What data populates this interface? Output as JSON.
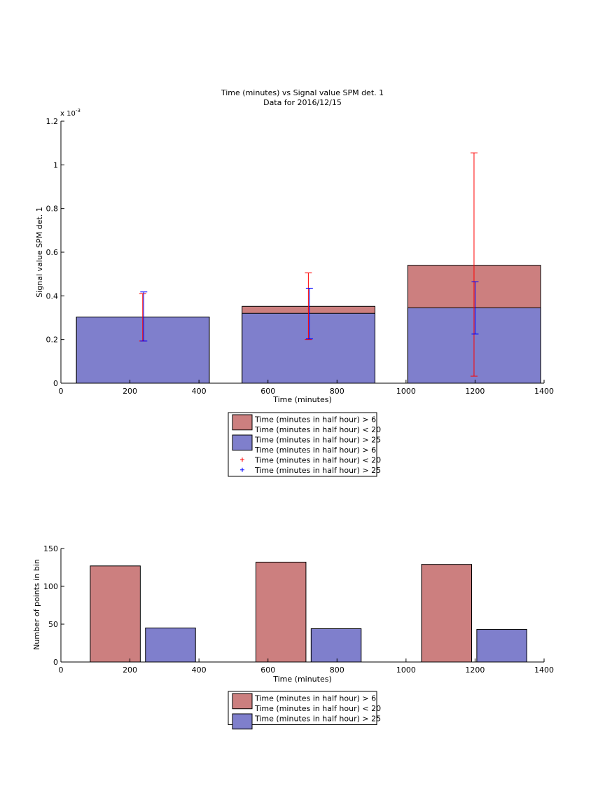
{
  "colors": {
    "red_fill": "#cc7f7f",
    "blue_fill": "#7f7fcc",
    "red_err": "#ff0000",
    "blue_err": "#0000ff",
    "axis": "#000000"
  },
  "chart_data": [
    {
      "type": "bar",
      "title": "Time (minutes) vs Signal value SPM det. 1",
      "subtitle": "Data for 2016/12/15",
      "xlabel": "Time (minutes)",
      "ylabel": "Signal value SPM det. 1",
      "exponent_label": "x 10",
      "exponent_power": "-3",
      "xlim": [
        0,
        1400
      ],
      "ylim": [
        0,
        1.2
      ],
      "y_scale": 0.001,
      "x_ticks": [
        "0",
        "200",
        "400",
        "600",
        "800",
        "1000",
        "1200",
        "1400"
      ],
      "y_ticks": [
        "0",
        "0.2",
        "0.4",
        "0.6",
        "0.8",
        "1",
        "1.2"
      ],
      "bars": [
        {
          "x_from": 45,
          "x_to": 430,
          "red": 0.303,
          "blue": 0.303
        },
        {
          "x_from": 525,
          "x_to": 910,
          "red": 0.352,
          "blue": 0.32
        },
        {
          "x_from": 1005,
          "x_to": 1390,
          "red": 0.54,
          "blue": 0.345
        }
      ],
      "series": [
        {
          "name": "Time (minutes in half hour) > 6",
          "values": [
            0.303,
            0.352,
            0.54
          ]
        },
        {
          "name": "Time (minutes in half hour) < 20",
          "values": [
            0.303,
            0.352,
            0.54
          ]
        },
        {
          "name": "Time (minutes in half hour) > 25",
          "values": [
            0.303,
            0.32,
            0.345
          ]
        }
      ],
      "errorbars": [
        {
          "series": "red",
          "x": 237,
          "low": 0.193,
          "high": 0.41
        },
        {
          "series": "blue",
          "x": 240,
          "low": 0.193,
          "high": 0.418
        },
        {
          "series": "red",
          "x": 717,
          "low": 0.2,
          "high": 0.505
        },
        {
          "series": "blue",
          "x": 720,
          "low": 0.203,
          "high": 0.435
        },
        {
          "series": "red",
          "x": 1197,
          "low": 0.032,
          "high": 1.055
        },
        {
          "series": "blue",
          "x": 1200,
          "low": 0.225,
          "high": 0.465
        }
      ],
      "legend": {
        "entries": [
          {
            "kind": "patch",
            "color": "red",
            "label": "Time (minutes in half hour) > 6"
          },
          {
            "kind": "none",
            "label": "Time (minutes in half hour) < 20"
          },
          {
            "kind": "patch",
            "color": "blue",
            "label": "Time (minutes in half hour) > 25"
          },
          {
            "kind": "none",
            "label": "Time (minutes in half hour) > 6"
          },
          {
            "kind": "marker",
            "color": "red",
            "label": "Time (minutes in half hour) < 20"
          },
          {
            "kind": "marker",
            "color": "blue",
            "label": "Time (minutes in half hour) > 25"
          }
        ]
      }
    },
    {
      "type": "bar",
      "title": "",
      "xlabel": "Time (minutes)",
      "ylabel": "Number of points in bin",
      "xlim": [
        0,
        1400
      ],
      "ylim": [
        0,
        150
      ],
      "x_ticks": [
        "0",
        "200",
        "400",
        "600",
        "800",
        "1000",
        "1200",
        "1400"
      ],
      "y_ticks": [
        "0",
        "50",
        "100",
        "150"
      ],
      "bars": [
        {
          "color": "red",
          "x_from": 85,
          "x_to": 230,
          "value": 127
        },
        {
          "color": "blue",
          "x_from": 245,
          "x_to": 390,
          "value": 45
        },
        {
          "color": "red",
          "x_from": 565,
          "x_to": 710,
          "value": 132
        },
        {
          "color": "blue",
          "x_from": 725,
          "x_to": 870,
          "value": 44
        },
        {
          "color": "red",
          "x_from": 1045,
          "x_to": 1190,
          "value": 129
        },
        {
          "color": "blue",
          "x_from": 1205,
          "x_to": 1350,
          "value": 43
        }
      ],
      "series": [
        {
          "name": "Time (minutes in half hour) > 6",
          "values": [
            127,
            132,
            129
          ]
        },
        {
          "name": "Time (minutes in half hour) < 20",
          "values": [
            127,
            132,
            129
          ]
        },
        {
          "name": "Time (minutes in half hour) > 25",
          "values": [
            45,
            44,
            43
          ]
        }
      ],
      "legend": {
        "entries": [
          {
            "kind": "patch",
            "color": "red",
            "label": "Time (minutes in half hour) > 6"
          },
          {
            "kind": "none",
            "label": "Time (minutes in half hour) < 20"
          },
          {
            "kind": "patch",
            "color": "blue",
            "label": "Time (minutes in half hour) > 25"
          }
        ]
      }
    }
  ]
}
